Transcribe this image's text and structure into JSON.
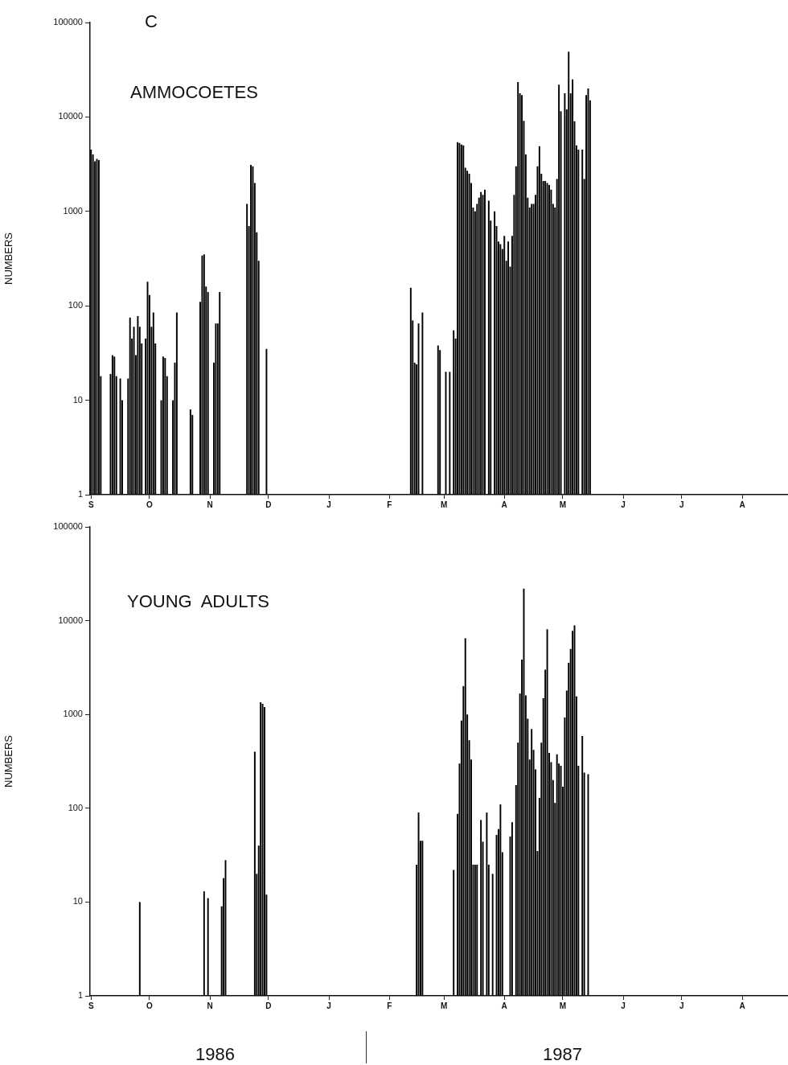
{
  "chart_data": [
    {
      "type": "bar",
      "title": "AMMOCOETES",
      "ylabel": "NUMBERS",
      "annotations": [
        "C"
      ],
      "color": "#000000",
      "log": true,
      "grid": false,
      "legend": false,
      "ylim": [
        1,
        100000
      ],
      "yticks": [
        1,
        10,
        100,
        1000,
        10000,
        100000
      ],
      "categories": [
        "S",
        null,
        null,
        null,
        null,
        null,
        null,
        null,
        null,
        null,
        null,
        null,
        null,
        null,
        null,
        null,
        null,
        null,
        null,
        null,
        null,
        null,
        null,
        null,
        null,
        null,
        null,
        null,
        null,
        null,
        "O",
        null,
        null,
        null,
        null,
        null,
        null,
        null,
        null,
        null,
        null,
        null,
        null,
        null,
        null,
        null,
        null,
        null,
        null,
        null,
        null,
        null,
        null,
        null,
        null,
        null,
        null,
        null,
        null,
        null,
        null,
        "N",
        null,
        null,
        null,
        null,
        null,
        null,
        null,
        null,
        null,
        null,
        null,
        null,
        null,
        null,
        null,
        null,
        null,
        null,
        null,
        null,
        null,
        null,
        null,
        null,
        null,
        null,
        null,
        null,
        null,
        "D",
        null,
        null,
        null,
        null,
        null,
        null,
        null,
        null,
        null,
        null,
        null,
        null,
        null,
        null,
        null,
        null,
        null,
        null,
        null,
        null,
        null,
        null,
        null,
        null,
        null,
        null,
        null,
        null,
        null,
        null,
        "J",
        null,
        null,
        null,
        null,
        null,
        null,
        null,
        null,
        null,
        null,
        null,
        null,
        null,
        null,
        null,
        null,
        null,
        null,
        null,
        null,
        null,
        null,
        null,
        null,
        null,
        null,
        null,
        null,
        null,
        null,
        "F",
        null,
        null,
        null,
        null,
        null,
        null,
        null,
        null,
        null,
        null,
        null,
        null,
        null,
        null,
        null,
        null,
        null,
        null,
        null,
        null,
        null,
        null,
        null,
        null,
        null,
        null,
        null,
        "M",
        null,
        null,
        null,
        null,
        null,
        null,
        null,
        null,
        null,
        null,
        null,
        null,
        null,
        null,
        null,
        null,
        null,
        null,
        null,
        null,
        null,
        null,
        null,
        null,
        null,
        null,
        null,
        null,
        null,
        null,
        "A",
        null,
        null,
        null,
        null,
        null,
        null,
        null,
        null,
        null,
        null,
        null,
        null,
        null,
        null,
        null,
        null,
        null,
        null,
        null,
        null,
        null,
        null,
        null,
        null,
        null,
        null,
        null,
        null,
        null,
        "M",
        null,
        null,
        null,
        null,
        null,
        null,
        null,
        null,
        null,
        null,
        null,
        null,
        null,
        null,
        null,
        null,
        null,
        null,
        null,
        null,
        null,
        null,
        null,
        null,
        null,
        null,
        null,
        null,
        null,
        null,
        "J",
        null,
        null,
        null,
        null,
        null,
        null,
        null,
        null,
        null,
        null,
        null,
        null,
        null,
        null,
        null,
        null,
        null,
        null,
        null,
        null,
        null,
        null,
        null,
        null,
        null,
        null,
        null,
        null,
        null,
        "J",
        null,
        null,
        null,
        null,
        null,
        null,
        null,
        null,
        null,
        null,
        null,
        null,
        null,
        null,
        null,
        null,
        null,
        null,
        null,
        null,
        null,
        null,
        null,
        null,
        null,
        null,
        null,
        null,
        null,
        null,
        "A",
        null,
        null,
        null,
        null,
        null,
        null,
        null,
        null,
        null,
        null,
        null,
        null,
        null,
        null,
        null,
        null,
        null,
        null,
        null,
        null,
        null,
        null,
        null
      ],
      "values": [
        4500,
        4000,
        3400,
        3600,
        3500,
        18,
        null,
        null,
        null,
        null,
        19,
        30,
        29,
        18,
        null,
        17,
        10,
        null,
        null,
        17,
        75,
        45,
        60,
        30,
        78,
        60,
        40,
        null,
        45,
        180,
        130,
        60,
        85,
        40,
        null,
        null,
        10,
        29,
        28,
        18,
        null,
        null,
        10,
        25,
        85,
        null,
        null,
        null,
        null,
        null,
        null,
        8,
        7,
        null,
        null,
        null,
        110,
        340,
        350,
        160,
        140,
        null,
        null,
        25,
        65,
        65,
        140,
        null,
        null,
        null,
        null,
        null,
        null,
        null,
        null,
        null,
        null,
        null,
        null,
        null,
        1200,
        700,
        3100,
        3000,
        2000,
        600,
        300,
        null,
        null,
        null,
        35,
        null,
        null,
        null,
        null,
        null,
        null,
        null,
        null,
        null,
        null,
        null,
        null,
        null,
        null,
        null,
        null,
        null,
        null,
        null,
        null,
        null,
        null,
        null,
        null,
        null,
        null,
        null,
        null,
        null,
        null,
        null,
        null,
        null,
        null,
        null,
        null,
        null,
        null,
        null,
        null,
        null,
        null,
        null,
        null,
        null,
        null,
        null,
        null,
        null,
        null,
        null,
        null,
        null,
        null,
        null,
        null,
        null,
        null,
        null,
        null,
        null,
        null,
        null,
        null,
        null,
        null,
        null,
        null,
        null,
        null,
        null,
        null,
        null,
        155,
        70,
        25,
        24,
        65,
        null,
        85,
        null,
        null,
        null,
        null,
        null,
        null,
        null,
        38,
        34,
        null,
        null,
        20,
        null,
        20,
        null,
        55,
        45,
        5400,
        5300,
        5100,
        5000,
        2900,
        2700,
        2500,
        2000,
        1100,
        1000,
        1200,
        1400,
        1600,
        1500,
        1700,
        null,
        1300,
        800,
        null,
        1000,
        700,
        480,
        450,
        400,
        550,
        300,
        480,
        260,
        550,
        1500,
        3000,
        23400,
        17800,
        17000,
        9100,
        4000,
        1400,
        1100,
        1200,
        1200,
        1500,
        3000,
        4900,
        2500,
        2100,
        2100,
        2000,
        1900,
        1700,
        1200,
        1100,
        2200,
        22000,
        11500,
        null,
        17800,
        12000,
        49000,
        17800,
        25000,
        9000,
        5000,
        4500,
        null,
        4500,
        2200,
        17000,
        20000,
        15000,
        null,
        null,
        null,
        null,
        null,
        null,
        null,
        null,
        null,
        null,
        null,
        null,
        null,
        null,
        null,
        null,
        null,
        null,
        null,
        null,
        null,
        null,
        null,
        null,
        null,
        null,
        null,
        null,
        null,
        null,
        null,
        null,
        null,
        null,
        null,
        null,
        null,
        null,
        null,
        null,
        null,
        null,
        null,
        null,
        null,
        null,
        null,
        null,
        null,
        null,
        null,
        null,
        null,
        null,
        null,
        null,
        null,
        null,
        null,
        null,
        null,
        null,
        null,
        null,
        null,
        null,
        null,
        null,
        null,
        null,
        null,
        null,
        null,
        null,
        null,
        null,
        null,
        null,
        null,
        null,
        null,
        null,
        null,
        null,
        null,
        null,
        null,
        null,
        null,
        null,
        null,
        null,
        null,
        null,
        null,
        null,
        null,
        null,
        null,
        null,
        null
      ]
    },
    {
      "type": "bar",
      "title": "YOUNG  ADULTS",
      "ylabel": "NUMBERS",
      "annotations": [
        "1986",
        "1987"
      ],
      "color": "#000000",
      "log": true,
      "grid": false,
      "legend": false,
      "ylim": [
        1,
        100000
      ],
      "yticks": [
        1,
        10,
        100,
        1000,
        10000,
        100000
      ],
      "categories": [
        "S",
        null,
        null,
        null,
        null,
        null,
        null,
        null,
        null,
        null,
        null,
        null,
        null,
        null,
        null,
        null,
        null,
        null,
        null,
        null,
        null,
        null,
        null,
        null,
        null,
        null,
        null,
        null,
        null,
        null,
        "O",
        null,
        null,
        null,
        null,
        null,
        null,
        null,
        null,
        null,
        null,
        null,
        null,
        null,
        null,
        null,
        null,
        null,
        null,
        null,
        null,
        null,
        null,
        null,
        null,
        null,
        null,
        null,
        null,
        null,
        null,
        "N",
        null,
        null,
        null,
        null,
        null,
        null,
        null,
        null,
        null,
        null,
        null,
        null,
        null,
        null,
        null,
        null,
        null,
        null,
        null,
        null,
        null,
        null,
        null,
        null,
        null,
        null,
        null,
        null,
        null,
        "D",
        null,
        null,
        null,
        null,
        null,
        null,
        null,
        null,
        null,
        null,
        null,
        null,
        null,
        null,
        null,
        null,
        null,
        null,
        null,
        null,
        null,
        null,
        null,
        null,
        null,
        null,
        null,
        null,
        null,
        null,
        "J",
        null,
        null,
        null,
        null,
        null,
        null,
        null,
        null,
        null,
        null,
        null,
        null,
        null,
        null,
        null,
        null,
        null,
        null,
        null,
        null,
        null,
        null,
        null,
        null,
        null,
        null,
        null,
        null,
        null,
        null,
        "F",
        null,
        null,
        null,
        null,
        null,
        null,
        null,
        null,
        null,
        null,
        null,
        null,
        null,
        null,
        null,
        null,
        null,
        null,
        null,
        null,
        null,
        null,
        null,
        null,
        null,
        null,
        null,
        "M",
        null,
        null,
        null,
        null,
        null,
        null,
        null,
        null,
        null,
        null,
        null,
        null,
        null,
        null,
        null,
        null,
        null,
        null,
        null,
        null,
        null,
        null,
        null,
        null,
        null,
        null,
        null,
        null,
        null,
        null,
        "A",
        null,
        null,
        null,
        null,
        null,
        null,
        null,
        null,
        null,
        null,
        null,
        null,
        null,
        null,
        null,
        null,
        null,
        null,
        null,
        null,
        null,
        null,
        null,
        null,
        null,
        null,
        null,
        null,
        null,
        "M",
        null,
        null,
        null,
        null,
        null,
        null,
        null,
        null,
        null,
        null,
        null,
        null,
        null,
        null,
        null,
        null,
        null,
        null,
        null,
        null,
        null,
        null,
        null,
        null,
        null,
        null,
        null,
        null,
        null,
        null,
        "J",
        null,
        null,
        null,
        null,
        null,
        null,
        null,
        null,
        null,
        null,
        null,
        null,
        null,
        null,
        null,
        null,
        null,
        null,
        null,
        null,
        null,
        null,
        null,
        null,
        null,
        null,
        null,
        null,
        null,
        "J",
        null,
        null,
        null,
        null,
        null,
        null,
        null,
        null,
        null,
        null,
        null,
        null,
        null,
        null,
        null,
        null,
        null,
        null,
        null,
        null,
        null,
        null,
        null,
        null,
        null,
        null,
        null,
        null,
        null,
        null,
        "A",
        null,
        null,
        null,
        null,
        null,
        null,
        null,
        null,
        null,
        null,
        null,
        null,
        null,
        null,
        null,
        null,
        null,
        null,
        null,
        null,
        null,
        null,
        null
      ],
      "values": [
        null,
        null,
        null,
        null,
        null,
        null,
        null,
        null,
        null,
        null,
        null,
        null,
        null,
        null,
        null,
        null,
        null,
        null,
        null,
        null,
        null,
        null,
        null,
        null,
        null,
        10,
        null,
        null,
        null,
        null,
        null,
        null,
        null,
        null,
        null,
        null,
        null,
        null,
        null,
        null,
        null,
        null,
        null,
        null,
        null,
        null,
        null,
        null,
        null,
        null,
        null,
        null,
        null,
        null,
        null,
        null,
        null,
        null,
        13,
        null,
        11,
        null,
        null,
        null,
        null,
        null,
        null,
        9,
        18,
        28,
        null,
        null,
        null,
        null,
        null,
        null,
        null,
        null,
        null,
        null,
        null,
        null,
        null,
        null,
        400,
        20,
        40,
        1350,
        1300,
        1200,
        12,
        null,
        null,
        null,
        null,
        null,
        null,
        null,
        null,
        null,
        null,
        null,
        null,
        null,
        null,
        null,
        null,
        null,
        null,
        null,
        null,
        null,
        null,
        null,
        null,
        null,
        null,
        null,
        null,
        null,
        null,
        null,
        null,
        null,
        null,
        null,
        null,
        null,
        null,
        null,
        null,
        null,
        null,
        null,
        null,
        null,
        null,
        null,
        null,
        null,
        null,
        null,
        null,
        null,
        null,
        null,
        null,
        null,
        null,
        null,
        null,
        null,
        null,
        null,
        null,
        null,
        null,
        null,
        null,
        null,
        null,
        null,
        null,
        null,
        null,
        null,
        null,
        25,
        90,
        45,
        45,
        null,
        null,
        null,
        null,
        null,
        null,
        null,
        null,
        null,
        null,
        null,
        null,
        null,
        null,
        null,
        22,
        null,
        87,
        300,
        860,
        2000,
        6500,
        1000,
        530,
        330,
        25,
        25,
        25,
        null,
        75,
        44,
        null,
        90,
        25,
        null,
        20,
        null,
        52,
        60,
        110,
        34,
        null,
        null,
        null,
        50,
        71,
        null,
        177,
        500,
        1670,
        3850,
        22000,
        1600,
        900,
        330,
        700,
        420,
        260,
        35,
        129,
        500,
        1490,
        3000,
        8100,
        390,
        310,
        200,
        114,
        375,
        300,
        283,
        170,
        930,
        1800,
        3550,
        5000,
        7800,
        8900,
        1560,
        283,
        null,
        590,
        240,
        null,
        230,
        null,
        null,
        null,
        null,
        null,
        null,
        null,
        null,
        null,
        null,
        null,
        null,
        null,
        null,
        null,
        null,
        null,
        null,
        null,
        null,
        null,
        null,
        null,
        null,
        null,
        null,
        null,
        null,
        null,
        null,
        null,
        null,
        null,
        null,
        null,
        null,
        null,
        null,
        null,
        null,
        null,
        null,
        null,
        null,
        null,
        null,
        null,
        null,
        null,
        null,
        null,
        null,
        null,
        null,
        null,
        null,
        null,
        null,
        null,
        null,
        null,
        null,
        null,
        null,
        null,
        null,
        null,
        null,
        null,
        null,
        null,
        null,
        null,
        null,
        null,
        null,
        null,
        null,
        null,
        null,
        null,
        null,
        null,
        null,
        null,
        null,
        null,
        null,
        null,
        null,
        null,
        null,
        null,
        null,
        null,
        null,
        null,
        null,
        null,
        null,
        null,
        null
      ]
    }
  ]
}
